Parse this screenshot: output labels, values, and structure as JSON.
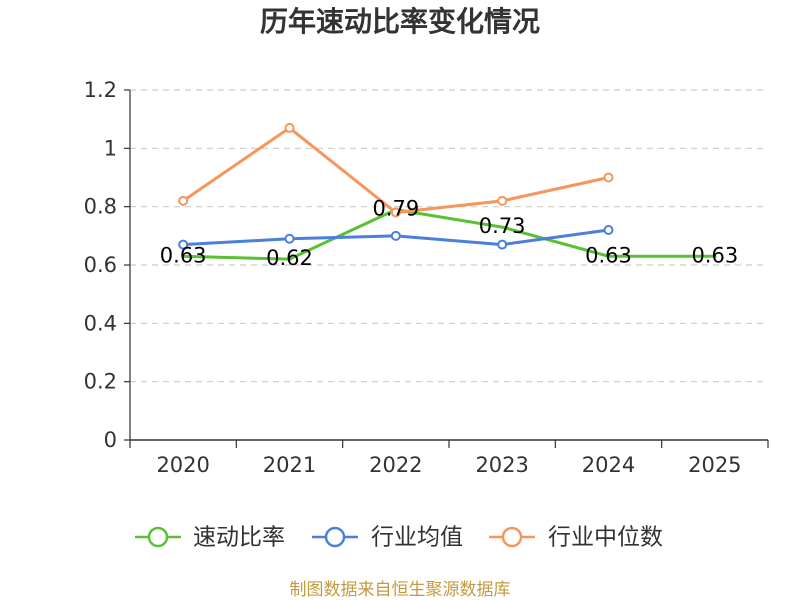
{
  "chart_data": {
    "type": "line",
    "title": "历年速动比率变化情况",
    "categories": [
      "2020",
      "2021",
      "2022",
      "2023",
      "2024",
      "2025"
    ],
    "ylim": [
      0,
      1.2
    ],
    "yticks": [
      0,
      0.2,
      0.4,
      0.6,
      0.8,
      1,
      1.2
    ],
    "grid": true,
    "legend_position": "bottom",
    "series": [
      {
        "name": "速动比率",
        "color": "#5ac034",
        "values": [
          0.63,
          0.62,
          0.79,
          0.73,
          0.63,
          0.63
        ],
        "data_labels": true,
        "markers": false
      },
      {
        "name": "行业均值",
        "color": "#4a7fdb",
        "values": [
          0.67,
          0.69,
          0.7,
          0.67,
          0.72,
          null
        ],
        "data_labels": false,
        "markers": true
      },
      {
        "name": "行业中位数",
        "color": "#f7955b",
        "values": [
          0.82,
          1.07,
          0.78,
          0.82,
          0.9,
          null
        ],
        "data_labels": false,
        "markers": true
      }
    ]
  },
  "footer": {
    "text": "制图数据来自恒生聚源数据库"
  },
  "colors": {
    "axis": "#333333",
    "grid": "#cccccc",
    "text": "#333333",
    "footer": "#c39b3f",
    "marker_fill": "#ffffff"
  }
}
